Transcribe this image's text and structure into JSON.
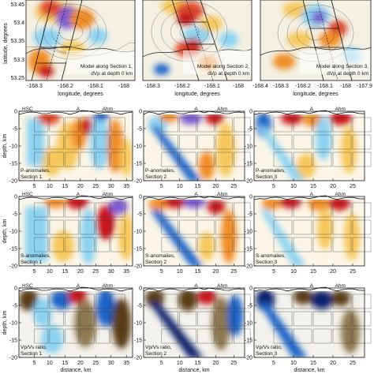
{
  "colors": {
    "red": "#c8141e",
    "orange": "#f08c28",
    "yellow": "#f8d878",
    "cyan": "#8cd2f0",
    "blue": "#1e64c8",
    "violet": "#7a5ad0",
    "darkbrown": "#5a3c14",
    "olive": "#8c7850",
    "navy": "#08246e"
  },
  "maps": [
    {
      "lines": [
        "Model along Section 1,",
        "dVp at depth 0 km"
      ]
    },
    {
      "lines": [
        "Model along Section 2,",
        "dVp at depth 0 km"
      ]
    },
    {
      "lines": [
        "Model along Section 3,",
        "dVp at depth 0 km"
      ]
    }
  ],
  "map_axes": {
    "xlabel": "longitude, degrees",
    "ylabel": "latitude, degrees",
    "lat_ticks": [
      "53.45",
      "53.4",
      "53.35",
      "53.3",
      "53.25"
    ],
    "lon_ticks": [
      "-168.4",
      "-168.3",
      "-168.2",
      "-168.1",
      "-168",
      "-167.9"
    ]
  },
  "sections": {
    "ylabel": "depth, km",
    "xlabel": "distance, km",
    "depth_ticks": [
      "0",
      "-5",
      "-10",
      "-15",
      "-20"
    ],
    "dist_ticks_1": [
      "5",
      "10",
      "15",
      "20",
      "25",
      "30",
      "35"
    ],
    "dist_ticks_23": [
      "5",
      "10",
      "15",
      "20",
      "25"
    ],
    "hsc": "HSC",
    "ahm": "Ahm",
    "a": "A",
    "rows": [
      {
        "labels": [
          [
            "P-anomalies,",
            "Section 1"
          ],
          [
            "P-anomalies,",
            "Section 2"
          ],
          [
            "P-anomalies,",
            "Section 3"
          ]
        ]
      },
      {
        "labels": [
          [
            "S-anomalies,",
            "Section 1"
          ],
          [
            "S-anomalies,",
            "Section 2"
          ],
          [
            "S-anomalies,",
            "Section 3"
          ]
        ]
      },
      {
        "labels": [
          [
            "Vp/Vs ratio,",
            "Section 1"
          ],
          [
            "Vp/Vs ratio,",
            "Section 2"
          ],
          [
            "Vp/Vs ratio,",
            "Section 3"
          ]
        ]
      }
    ]
  }
}
